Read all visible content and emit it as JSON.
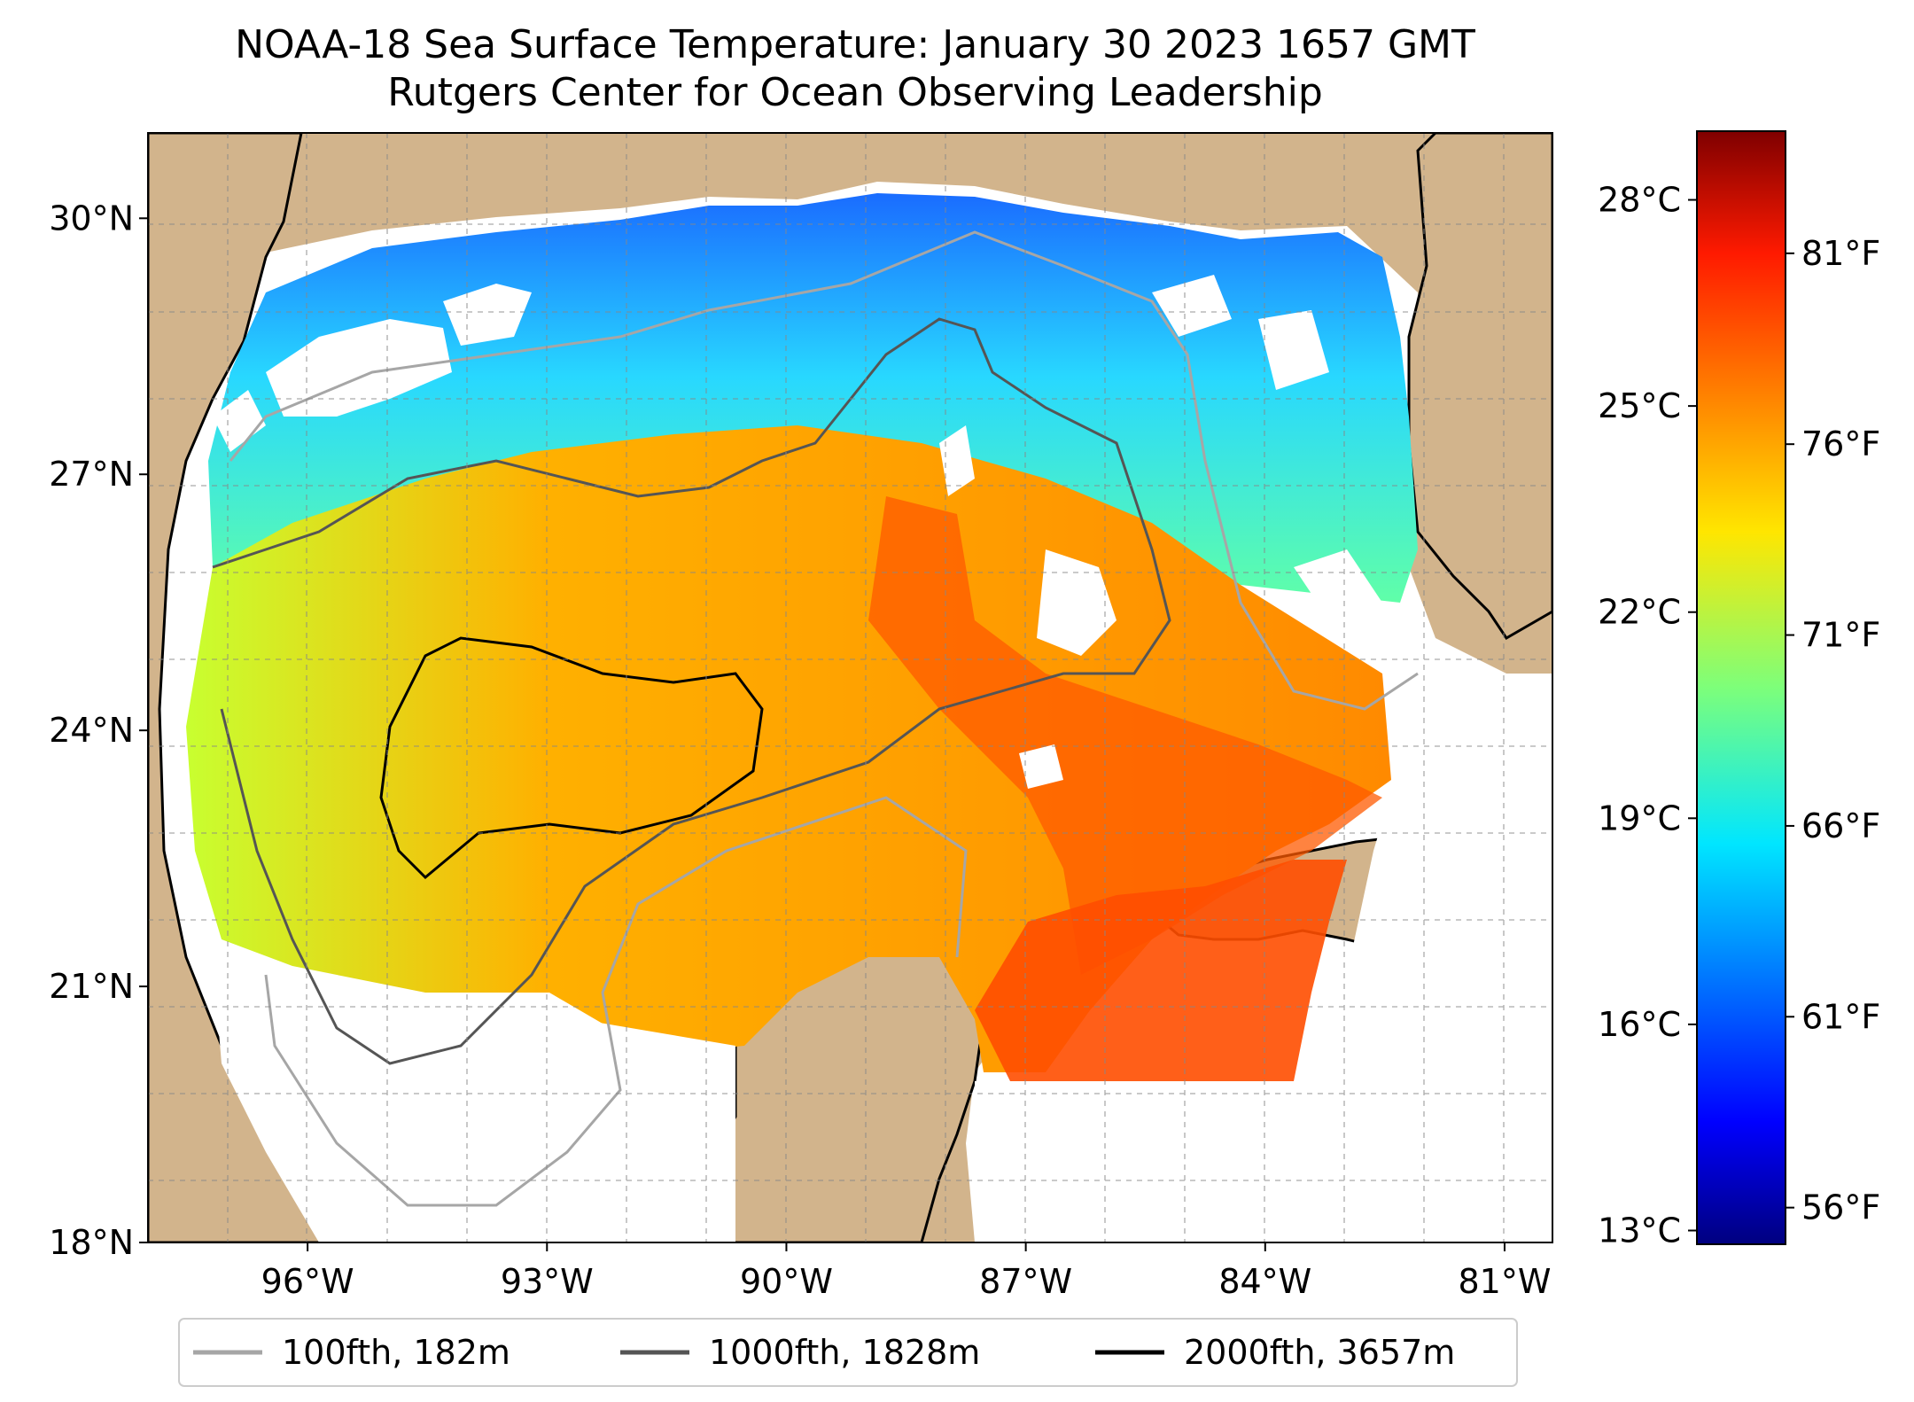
{
  "title": {
    "line1": "NOAA-18 Sea Surface Temperature: January 30 2023 1657 GMT",
    "line2": "Rutgers Center for Ocean Observing Leadership"
  },
  "map": {
    "lon_range": [
      -98.0,
      -80.4
    ],
    "lat_range": [
      18.0,
      31.0
    ],
    "lat_ticks": [
      {
        "value": 30,
        "label": "30°N"
      },
      {
        "value": 27,
        "label": "27°N"
      },
      {
        "value": 24,
        "label": "24°N"
      },
      {
        "value": 21,
        "label": "21°N"
      },
      {
        "value": 18,
        "label": "18°N"
      }
    ],
    "lon_ticks": [
      {
        "value": -96,
        "label": "96°W"
      },
      {
        "value": -93,
        "label": "93°W"
      },
      {
        "value": -90,
        "label": "90°W"
      },
      {
        "value": -87,
        "label": "87°W"
      },
      {
        "value": -84,
        "label": "84°W"
      },
      {
        "value": -81,
        "label": "81°W"
      }
    ],
    "land_color": "#d2b48c",
    "no_data_color": "#ffffff",
    "grid": true
  },
  "colorbar": {
    "range_c": [
      12.8,
      29.0
    ],
    "colormap": "jet",
    "celsius_ticks": [
      "28°C",
      "25°C",
      "22°C",
      "19°C",
      "16°C",
      "13°C"
    ],
    "fahrenheit_ticks": [
      "81°F",
      "76°F",
      "71°F",
      "66°F",
      "61°F",
      "56°F"
    ]
  },
  "legend": {
    "items": [
      {
        "label": "100fth, 182m",
        "color": "#a6a6a6"
      },
      {
        "label": "1000fth, 1828m",
        "color": "#555555"
      },
      {
        "label": "2000fth, 3657m",
        "color": "#000000"
      }
    ]
  }
}
